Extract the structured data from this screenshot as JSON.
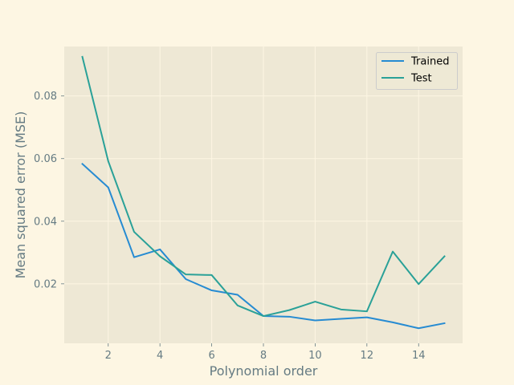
{
  "chart_data": {
    "type": "line",
    "title": "",
    "xlabel": "Polynomial order",
    "ylabel": "Mean squared error (MSE)",
    "xlim": [
      0.3,
      15.7
    ],
    "ylim": [
      0.001,
      0.0958
    ],
    "x_ticks": [
      2,
      4,
      6,
      8,
      10,
      12,
      14
    ],
    "y_ticks": [
      0.02,
      0.04,
      0.06,
      0.08
    ],
    "x_tick_labels": [
      "2",
      "4",
      "6",
      "8",
      "10",
      "12",
      "14"
    ],
    "y_tick_labels": [
      "0.02",
      "0.04",
      "0.06",
      "0.08"
    ],
    "grid": true,
    "legend_position": "upper right",
    "x": [
      1,
      2,
      3,
      4,
      5,
      6,
      7,
      8,
      9,
      10,
      11,
      12,
      13,
      14,
      15
    ],
    "series": [
      {
        "name": "Trained",
        "color": "#268bd2",
        "values": [
          0.0583,
          0.0508,
          0.0285,
          0.031,
          0.0215,
          0.0179,
          0.0165,
          0.0097,
          0.0095,
          0.0083,
          0.0088,
          0.0093,
          0.0077,
          0.0058,
          0.0074
        ]
      },
      {
        "name": "Test",
        "color": "#2aa198",
        "values": [
          0.0925,
          0.0592,
          0.0366,
          0.0288,
          0.023,
          0.0228,
          0.0131,
          0.0097,
          0.0116,
          0.0143,
          0.0118,
          0.0112,
          0.0303,
          0.0199,
          0.0288
        ]
      }
    ]
  },
  "colors": {
    "figure_background": "#fdf6e3",
    "axes_background": "#eee8d5",
    "grid": "#fdf6e3",
    "text": "#657b83"
  }
}
